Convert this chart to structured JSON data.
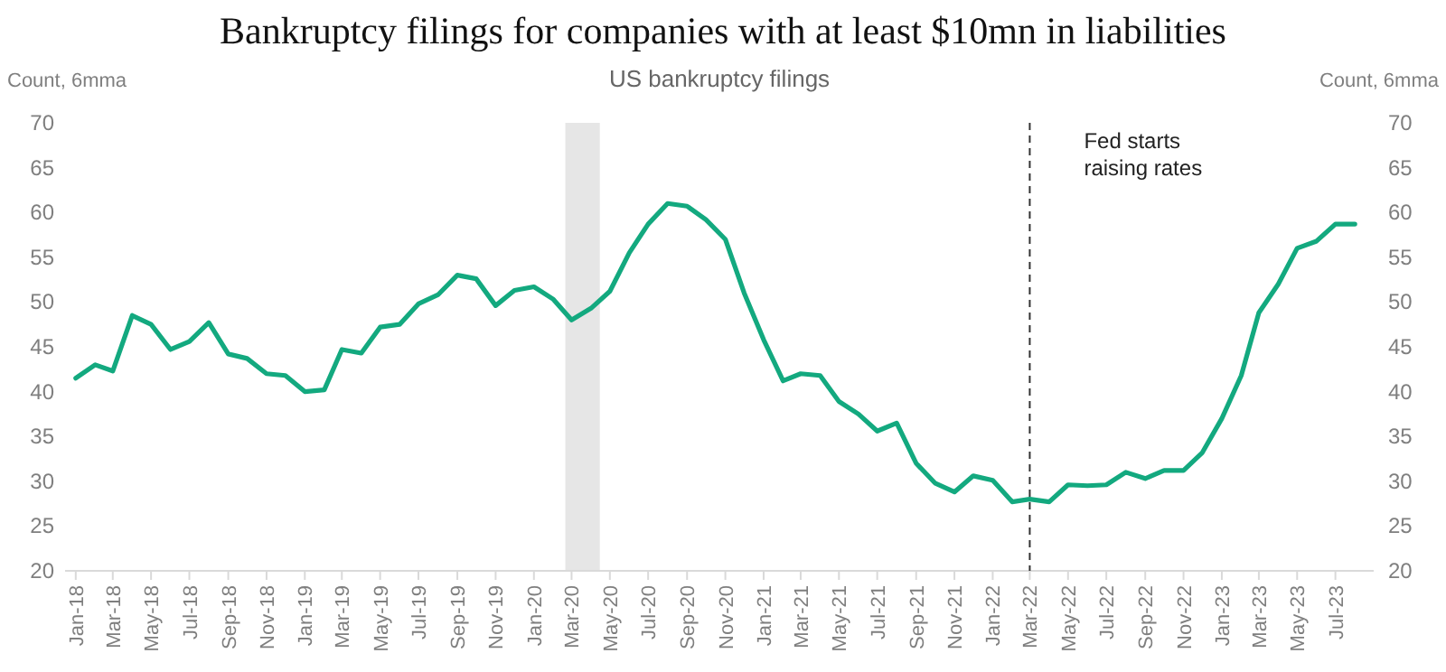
{
  "chart_data": {
    "type": "line",
    "title": "Bankruptcy filings for companies with at least $10mn in liabilities",
    "subtitle": "US bankruptcy filings",
    "ylabel": "Count, 6mma",
    "y2label": "Count, 6mma",
    "x": [
      "2018-01",
      "2018-02",
      "2018-03",
      "2018-04",
      "2018-05",
      "2018-06",
      "2018-07",
      "2018-08",
      "2018-09",
      "2018-10",
      "2018-11",
      "2018-12",
      "2019-01",
      "2019-02",
      "2019-03",
      "2019-04",
      "2019-05",
      "2019-06",
      "2019-07",
      "2019-08",
      "2019-09",
      "2019-10",
      "2019-11",
      "2019-12",
      "2020-01",
      "2020-02",
      "2020-03",
      "2020-04",
      "2020-05",
      "2020-06",
      "2020-07",
      "2020-08",
      "2020-09",
      "2020-10",
      "2020-11",
      "2020-12",
      "2021-01",
      "2021-02",
      "2021-03",
      "2021-04",
      "2021-05",
      "2021-06",
      "2021-07",
      "2021-08",
      "2021-09",
      "2021-10",
      "2021-11",
      "2021-12",
      "2022-01",
      "2022-02",
      "2022-03",
      "2022-04",
      "2022-05",
      "2022-06",
      "2022-07",
      "2022-08",
      "2022-09",
      "2022-10",
      "2022-11",
      "2022-12",
      "2023-01",
      "2023-02",
      "2023-03",
      "2023-04",
      "2023-05",
      "2023-06",
      "2023-07",
      "2023-08"
    ],
    "series": [
      {
        "color": "#13a97f",
        "values": [
          41.5,
          43,
          42.3,
          48.5,
          47.5,
          44.7,
          45.6,
          47.7,
          44.2,
          43.7,
          42,
          41.8,
          40,
          40.2,
          44.7,
          44.3,
          47.2,
          47.5,
          49.8,
          50.8,
          53,
          52.6,
          49.6,
          51.3,
          51.7,
          50.3,
          48,
          49.3,
          51.2,
          55.5,
          58.7,
          61,
          60.7,
          59.2,
          57,
          51,
          45.8,
          41.2,
          42,
          41.8,
          38.9,
          37.5,
          35.6,
          36.5,
          32,
          29.8,
          28.8,
          30.6,
          30.1,
          27.7,
          28,
          27.7,
          29.6,
          29.5,
          29.6,
          31,
          30.3,
          31.2,
          31.2,
          33.2,
          37,
          41.8,
          48.8,
          52,
          56,
          56.8,
          58.7,
          58.7
        ]
      }
    ],
    "xlim": [
      "2017-12-15",
      "2023-08-31"
    ],
    "xticks": [
      {
        "value": "2018-01",
        "label": "Jan-18"
      },
      {
        "value": "2018-03",
        "label": "Mar-18"
      },
      {
        "value": "2018-05",
        "label": "May-18"
      },
      {
        "value": "2018-07",
        "label": "Jul-18"
      },
      {
        "value": "2018-09",
        "label": "Sep-18"
      },
      {
        "value": "2018-11",
        "label": "Nov-18"
      },
      {
        "value": "2019-01",
        "label": "Jan-19"
      },
      {
        "value": "2019-03",
        "label": "Mar-19"
      },
      {
        "value": "2019-05",
        "label": "May-19"
      },
      {
        "value": "2019-07",
        "label": "Jul-19"
      },
      {
        "value": "2019-09",
        "label": "Sep-19"
      },
      {
        "value": "2019-11",
        "label": "Nov-19"
      },
      {
        "value": "2020-01",
        "label": "Jan-20"
      },
      {
        "value": "2020-03",
        "label": "Mar-20"
      },
      {
        "value": "2020-05",
        "label": "May-20"
      },
      {
        "value": "2020-07",
        "label": "Jul-20"
      },
      {
        "value": "2020-09",
        "label": "Sep-20"
      },
      {
        "value": "2020-11",
        "label": "Nov-20"
      },
      {
        "value": "2021-01",
        "label": "Jan-21"
      },
      {
        "value": "2021-03",
        "label": "Mar-21"
      },
      {
        "value": "2021-05",
        "label": "May-21"
      },
      {
        "value": "2021-07",
        "label": "Jul-21"
      },
      {
        "value": "2021-09",
        "label": "Sep-21"
      },
      {
        "value": "2021-11",
        "label": "Nov-21"
      },
      {
        "value": "2022-01",
        "label": "Jan-22"
      },
      {
        "value": "2022-03",
        "label": "Mar-22"
      },
      {
        "value": "2022-05",
        "label": "May-22"
      },
      {
        "value": "2022-07",
        "label": "Jul-22"
      },
      {
        "value": "2022-09",
        "label": "Sep-22"
      },
      {
        "value": "2022-11",
        "label": "Nov-22"
      },
      {
        "value": "2023-01",
        "label": "Jan-23"
      },
      {
        "value": "2023-03",
        "label": "Mar-23"
      },
      {
        "value": "2023-05",
        "label": "May-23"
      },
      {
        "value": "2023-07",
        "label": "Jul-23"
      }
    ],
    "ylim": [
      20,
      70
    ],
    "yticks": [
      20,
      25,
      30,
      35,
      40,
      45,
      50,
      55,
      60,
      65,
      70
    ],
    "y2lim": [
      20,
      70
    ],
    "y2ticks": [
      20,
      25,
      30,
      35,
      40,
      45,
      50,
      55,
      60,
      65,
      70
    ],
    "ref_lines": [
      {
        "axis": "x",
        "value": "2022-03",
        "label": "Fed starts raising rates",
        "color": "#333333",
        "line_style": "dashed"
      }
    ],
    "bands": [
      {
        "axis": "x",
        "from": "2020-02-20",
        "to": "2020-04-15",
        "color": "#e6e6e6"
      }
    ],
    "grid": false,
    "marker": "none",
    "line_style": "solid"
  }
}
